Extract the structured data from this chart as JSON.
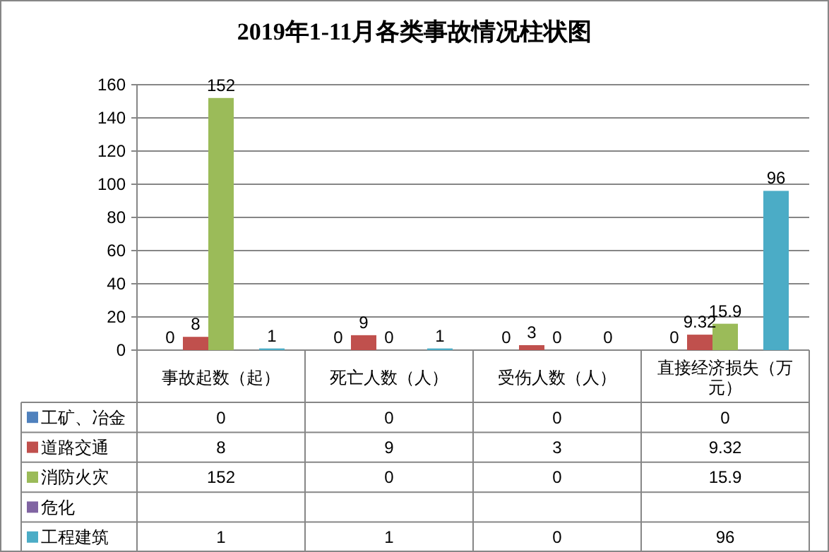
{
  "chart_data": {
    "type": "bar",
    "title": "2019年1-11月各类事故情况柱状图",
    "categories": [
      "事故起数（起）",
      "死亡人数（人）",
      "受伤人数（人）",
      "直接经济损失（万元）"
    ],
    "series": [
      {
        "name": "工矿、冶金",
        "color": "#4f81bd",
        "values": [
          0,
          0,
          0,
          0
        ],
        "value_labels": [
          "0",
          "0",
          "0",
          "0"
        ]
      },
      {
        "name": "道路交通",
        "color": "#c0504d",
        "values": [
          8,
          9,
          3,
          9.32
        ],
        "value_labels": [
          "8",
          "9",
          "3",
          "9.32"
        ]
      },
      {
        "name": "消防火灾",
        "color": "#9bbb59",
        "values": [
          152,
          0,
          0,
          15.9
        ],
        "value_labels": [
          "152",
          "0",
          "0",
          "15.9"
        ]
      },
      {
        "name": "危化",
        "color": "#8064a2",
        "values": [
          null,
          null,
          null,
          null
        ]
      },
      {
        "name": "工程建筑",
        "color": "#4bacc6",
        "values": [
          1,
          1,
          0,
          96
        ],
        "value_labels": [
          "1",
          "1",
          "0",
          "96"
        ]
      }
    ],
    "ylim": [
      0,
      160
    ],
    "yticks": [
      0,
      20,
      40,
      60,
      80,
      100,
      120,
      140,
      160
    ],
    "grid": "y",
    "data_labels": true,
    "legend": "bottom"
  }
}
